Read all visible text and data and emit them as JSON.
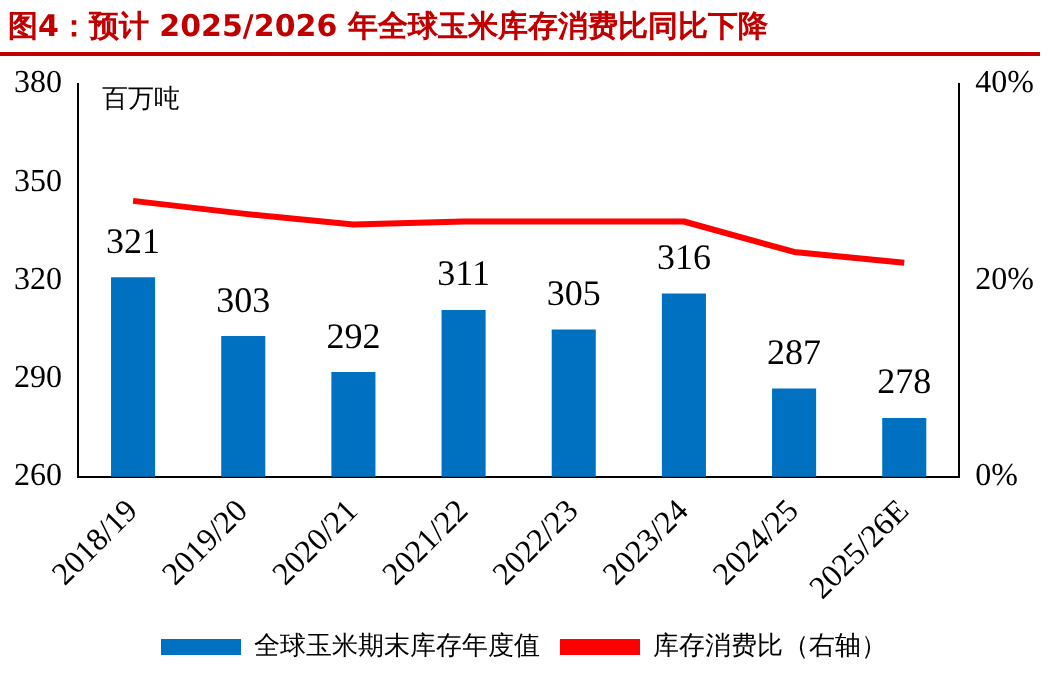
{
  "chart_data": {
    "type": "bar",
    "title": "图4：预计 2025/2026 年全球玉米库存消费比同比下降",
    "ylabel": "百万吨",
    "categories": [
      "2018/19",
      "2019/20",
      "2020/21",
      "2021/22",
      "2022/23",
      "2023/24",
      "2024/25",
      "2025/26E"
    ],
    "series": [
      {
        "name": "全球玉米期末库存年度值",
        "color": "#0070c0",
        "values": [
          321,
          303,
          292,
          311,
          305,
          316,
          287,
          278
        ],
        "value_labels": [
          "321",
          "303",
          "292",
          "311",
          "305",
          "316",
          "287",
          "278"
        ]
      },
      {
        "name": "库存消费比（右轴）",
        "type": "line",
        "axis": "y2",
        "color": "#ff0000",
        "values": [
          28.1,
          26.8,
          25.7,
          26.0,
          26.0,
          26.0,
          22.9,
          21.8
        ]
      }
    ],
    "ylim": [
      260,
      380
    ],
    "yticks": [
      260,
      290,
      320,
      350,
      380
    ],
    "y2lim": [
      0,
      40
    ],
    "y2ticks": [
      {
        "value": 0,
        "label": "0%"
      },
      {
        "value": 20,
        "label": "20%"
      },
      {
        "value": 40,
        "label": "40%"
      }
    ],
    "grid": false,
    "legend": "bottom",
    "marker": "none",
    "line_style": "solid"
  }
}
